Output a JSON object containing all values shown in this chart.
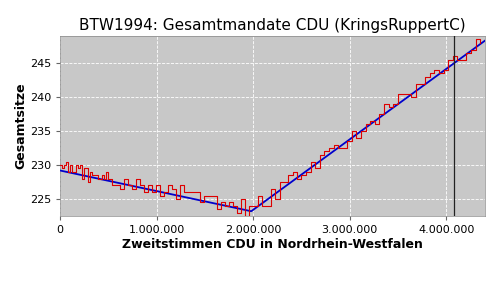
{
  "title": "BTW1994: Gesamtmandate CDU (KringsRuppertC)",
  "xlabel": "Zweitstimmen CDU in Nordrhein-Westfalen",
  "ylabel": "Gesamtsitze",
  "xlim": [
    0,
    4400000
  ],
  "ylim": [
    222.5,
    249
  ],
  "yticks": [
    225,
    230,
    235,
    240,
    245
  ],
  "xticks": [
    0,
    1000000,
    2000000,
    3000000,
    4000000
  ],
  "xtick_labels": [
    "0",
    "1.000.000",
    "2.000.000",
    "3.000.000",
    "4.000.000"
  ],
  "wahlergebnis_x": 4080000,
  "bg_color": "#c8c8c8",
  "grid_color": "white",
  "real_color": "#dd0000",
  "ideal_color": "#0000cc",
  "wahlergebnis_color": "#222222",
  "title_fontsize": 11,
  "axis_label_fontsize": 9,
  "tick_fontsize": 8,
  "legend_fontsize": 8,
  "ideal_start_x": 0,
  "ideal_start_y": 229.2,
  "ideal_min_x": 1980000,
  "ideal_min_y": 223.2,
  "ideal_end_x": 4350000,
  "ideal_end_y": 247.8
}
